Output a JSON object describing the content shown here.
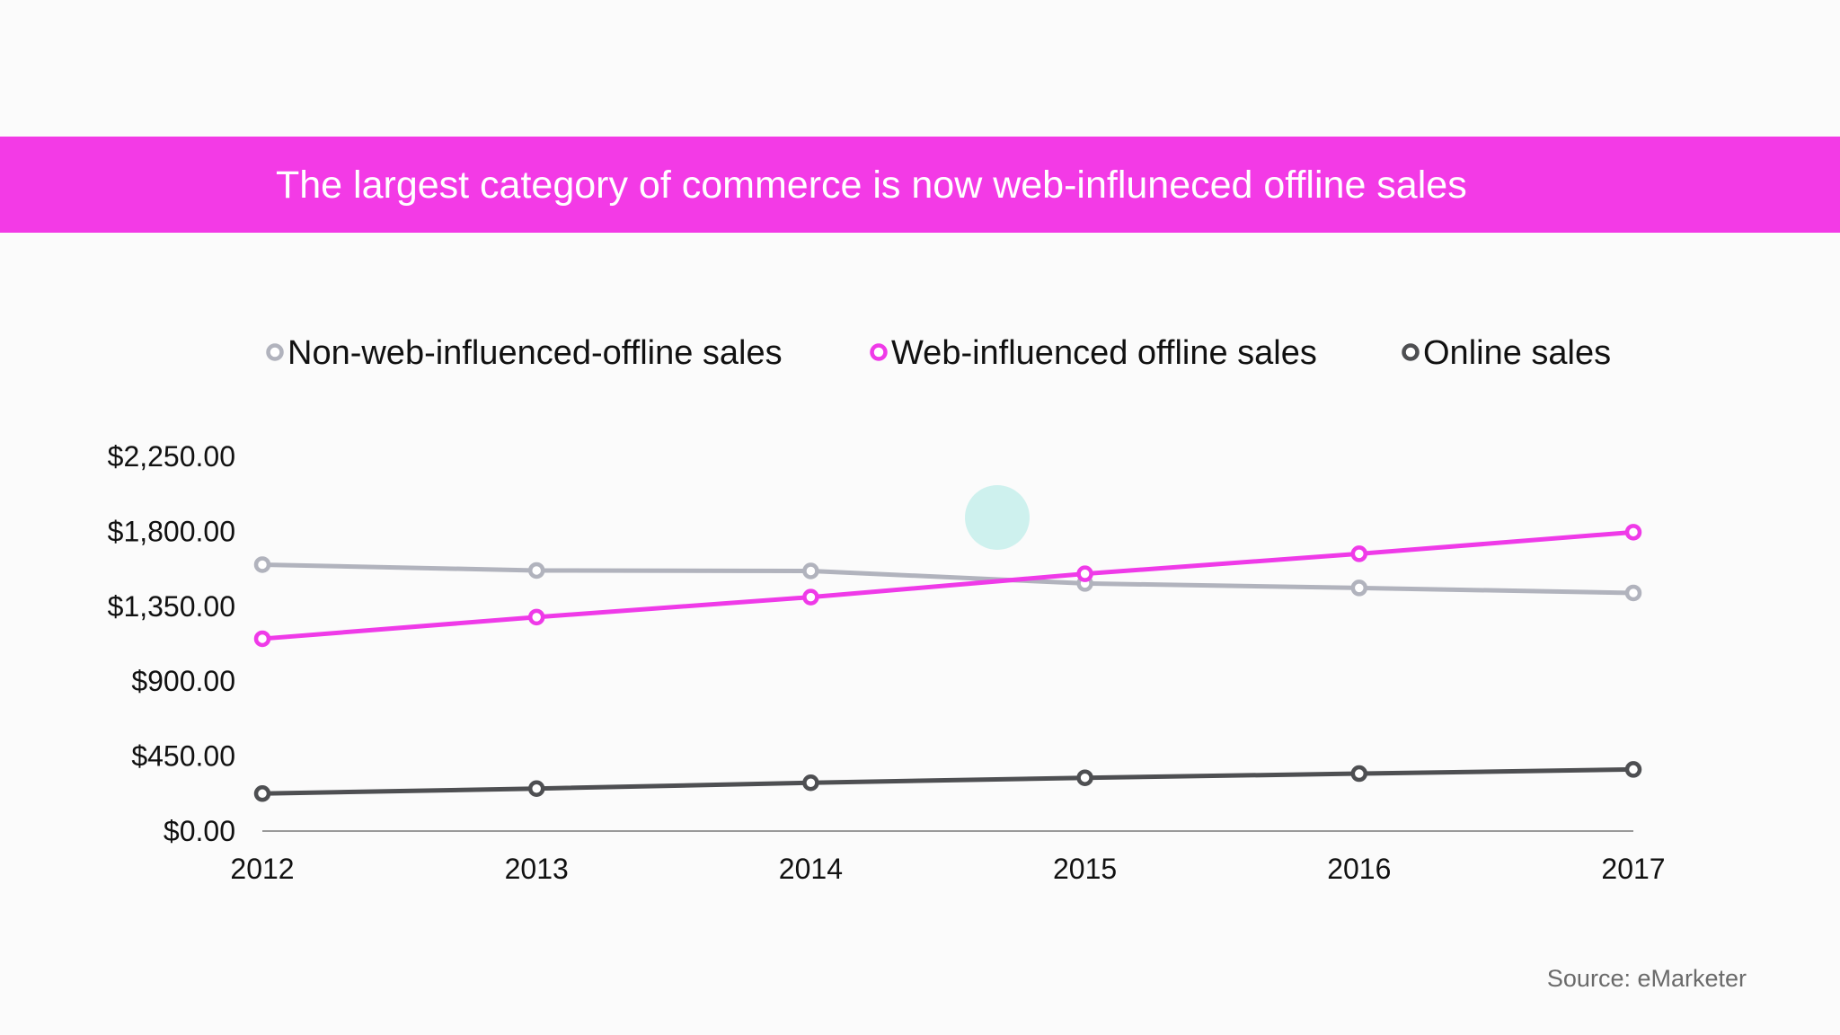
{
  "slide": {
    "title": "The largest category of commerce is now web-influneced offline sales",
    "source": "Source: eMarketer"
  },
  "colors": {
    "title_band": "#f33ae6",
    "non_web": "#b1b3bd",
    "web_influenced": "#ef3ae8",
    "online": "#4e4f52"
  },
  "chart_data": {
    "type": "line",
    "title": "",
    "xlabel": "",
    "ylabel": "",
    "x": [
      "2012",
      "2013",
      "2014",
      "2015",
      "2016",
      "2017"
    ],
    "y_ticks": [
      "$0.00",
      "$450.00",
      "$900.00",
      "$1,350.00",
      "$1,800.00",
      "$2,250.00"
    ],
    "ylim": [
      0,
      2250
    ],
    "grid": false,
    "legend_position": "top",
    "series": [
      {
        "name": "Non-web-influenced-offline sales",
        "color": "#b1b3bd",
        "values": [
          1600,
          1565,
          1562,
          1487,
          1460,
          1430
        ]
      },
      {
        "name": "Web-influenced offline sales",
        "color": "#ef3ae8",
        "values": [
          1155,
          1285,
          1405,
          1545,
          1665,
          1795
        ]
      },
      {
        "name": "Online sales",
        "color": "#4e4f52",
        "values": [
          225,
          255,
          290,
          320,
          345,
          370
        ]
      }
    ]
  }
}
